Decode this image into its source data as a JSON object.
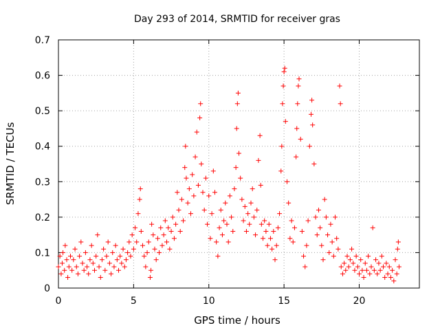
{
  "chart_data": {
    "type": "scatter",
    "title": "Day 293 of 2014, SRMTID for receiver gras",
    "xlabel": "GPS time / hours",
    "ylabel": "SRMTID / TECUs",
    "xlim": [
      0,
      24
    ],
    "ylim": [
      0,
      0.7
    ],
    "xticks": [
      0,
      5,
      10,
      15,
      20
    ],
    "xtick_labels": [
      "0",
      "5",
      "10",
      "15",
      "20"
    ],
    "yticks": [
      0,
      0.1,
      0.2,
      0.3,
      0.4,
      0.5,
      0.6,
      0.7
    ],
    "ytick_labels": [
      "0",
      "0.1",
      "0.2",
      "0.3",
      "0.4",
      "0.5",
      "0.6",
      "0.7"
    ],
    "grid": true,
    "marker": "+",
    "marker_color": "#ff0000",
    "series": [
      {
        "name": "gras",
        "points": [
          [
            0.0,
            0.06
          ],
          [
            0.1,
            0.09
          ],
          [
            0.18,
            0.04
          ],
          [
            0.25,
            0.07
          ],
          [
            0.3,
            0.1
          ],
          [
            0.4,
            0.05
          ],
          [
            0.45,
            0.12
          ],
          [
            0.55,
            0.08
          ],
          [
            0.62,
            0.03
          ],
          [
            0.7,
            0.06
          ],
          [
            0.8,
            0.09
          ],
          [
            0.9,
            0.05
          ],
          [
            1.0,
            0.08
          ],
          [
            1.1,
            0.11
          ],
          [
            1.2,
            0.06
          ],
          [
            1.3,
            0.04
          ],
          [
            1.4,
            0.09
          ],
          [
            1.5,
            0.13
          ],
          [
            1.6,
            0.07
          ],
          [
            1.7,
            0.05
          ],
          [
            1.8,
            0.1
          ],
          [
            1.9,
            0.06
          ],
          [
            2.0,
            0.04
          ],
          [
            2.1,
            0.08
          ],
          [
            2.2,
            0.12
          ],
          [
            2.3,
            0.07
          ],
          [
            2.4,
            0.05
          ],
          [
            2.5,
            0.09
          ],
          [
            2.6,
            0.15
          ],
          [
            2.7,
            0.06
          ],
          [
            2.8,
            0.03
          ],
          [
            2.9,
            0.08
          ],
          [
            3.0,
            0.11
          ],
          [
            3.1,
            0.05
          ],
          [
            3.2,
            0.09
          ],
          [
            3.3,
            0.13
          ],
          [
            3.4,
            0.07
          ],
          [
            3.5,
            0.04
          ],
          [
            3.6,
            0.1
          ],
          [
            3.7,
            0.06
          ],
          [
            3.8,
            0.12
          ],
          [
            3.9,
            0.08
          ],
          [
            4.0,
            0.05
          ],
          [
            4.1,
            0.09
          ],
          [
            4.2,
            0.07
          ],
          [
            4.3,
            0.11
          ],
          [
            4.4,
            0.06
          ],
          [
            4.5,
            0.08
          ],
          [
            4.6,
            0.1
          ],
          [
            4.7,
            0.13
          ],
          [
            4.8,
            0.09
          ],
          [
            4.9,
            0.15
          ],
          [
            5.0,
            0.11
          ],
          [
            5.1,
            0.17
          ],
          [
            5.2,
            0.13
          ],
          [
            5.3,
            0.21
          ],
          [
            5.4,
            0.25
          ],
          [
            5.45,
            0.28
          ],
          [
            5.5,
            0.16
          ],
          [
            5.6,
            0.12
          ],
          [
            5.7,
            0.09
          ],
          [
            5.8,
            0.06
          ],
          [
            5.9,
            0.1
          ],
          [
            6.0,
            0.13
          ],
          [
            6.1,
            0.03
          ],
          [
            6.15,
            0.05
          ],
          [
            6.2,
            0.18
          ],
          [
            6.3,
            0.15
          ],
          [
            6.4,
            0.11
          ],
          [
            6.5,
            0.08
          ],
          [
            6.6,
            0.14
          ],
          [
            6.7,
            0.1
          ],
          [
            6.8,
            0.17
          ],
          [
            6.9,
            0.12
          ],
          [
            7.0,
            0.15
          ],
          [
            7.1,
            0.19
          ],
          [
            7.2,
            0.13
          ],
          [
            7.3,
            0.17
          ],
          [
            7.4,
            0.11
          ],
          [
            7.5,
            0.16
          ],
          [
            7.6,
            0.2
          ],
          [
            7.7,
            0.14
          ],
          [
            7.8,
            0.18
          ],
          [
            7.9,
            0.27
          ],
          [
            8.0,
            0.22
          ],
          [
            8.1,
            0.16
          ],
          [
            8.2,
            0.25
          ],
          [
            8.3,
            0.19
          ],
          [
            8.4,
            0.34
          ],
          [
            8.45,
            0.4
          ],
          [
            8.5,
            0.31
          ],
          [
            8.6,
            0.24
          ],
          [
            8.7,
            0.28
          ],
          [
            8.8,
            0.21
          ],
          [
            8.9,
            0.32
          ],
          [
            9.0,
            0.26
          ],
          [
            9.1,
            0.37
          ],
          [
            9.2,
            0.44
          ],
          [
            9.3,
            0.29
          ],
          [
            9.4,
            0.48
          ],
          [
            9.45,
            0.52
          ],
          [
            9.5,
            0.35
          ],
          [
            9.6,
            0.27
          ],
          [
            9.7,
            0.22
          ],
          [
            9.8,
            0.31
          ],
          [
            9.9,
            0.18
          ],
          [
            10.0,
            0.26
          ],
          [
            10.1,
            0.14
          ],
          [
            10.2,
            0.21
          ],
          [
            10.3,
            0.33
          ],
          [
            10.4,
            0.27
          ],
          [
            10.5,
            0.13
          ],
          [
            10.6,
            0.09
          ],
          [
            10.7,
            0.17
          ],
          [
            10.8,
            0.22
          ],
          [
            10.9,
            0.15
          ],
          [
            11.0,
            0.19
          ],
          [
            11.1,
            0.24
          ],
          [
            11.2,
            0.18
          ],
          [
            11.3,
            0.13
          ],
          [
            11.4,
            0.26
          ],
          [
            11.5,
            0.2
          ],
          [
            11.6,
            0.16
          ],
          [
            11.7,
            0.28
          ],
          [
            11.8,
            0.34
          ],
          [
            11.85,
            0.45
          ],
          [
            11.9,
            0.52
          ],
          [
            11.95,
            0.55
          ],
          [
            12.0,
            0.38
          ],
          [
            12.1,
            0.31
          ],
          [
            12.2,
            0.25
          ],
          [
            12.3,
            0.19
          ],
          [
            12.4,
            0.23
          ],
          [
            12.5,
            0.16
          ],
          [
            12.6,
            0.21
          ],
          [
            12.7,
            0.18
          ],
          [
            12.8,
            0.24
          ],
          [
            12.9,
            0.28
          ],
          [
            13.0,
            0.2
          ],
          [
            13.1,
            0.15
          ],
          [
            13.2,
            0.22
          ],
          [
            13.3,
            0.36
          ],
          [
            13.4,
            0.43
          ],
          [
            13.45,
            0.29
          ],
          [
            13.5,
            0.18
          ],
          [
            13.6,
            0.14
          ],
          [
            13.7,
            0.19
          ],
          [
            13.8,
            0.16
          ],
          [
            13.9,
            0.12
          ],
          [
            14.0,
            0.18
          ],
          [
            14.1,
            0.14
          ],
          [
            14.2,
            0.11
          ],
          [
            14.3,
            0.16
          ],
          [
            14.4,
            0.08
          ],
          [
            14.5,
            0.12
          ],
          [
            14.6,
            0.17
          ],
          [
            14.7,
            0.21
          ],
          [
            14.8,
            0.33
          ],
          [
            14.85,
            0.4
          ],
          [
            14.9,
            0.52
          ],
          [
            14.95,
            0.57
          ],
          [
            15.0,
            0.61
          ],
          [
            15.05,
            0.62
          ],
          [
            15.1,
            0.47
          ],
          [
            15.2,
            0.3
          ],
          [
            15.3,
            0.24
          ],
          [
            15.4,
            0.14
          ],
          [
            15.5,
            0.19
          ],
          [
            15.6,
            0.13
          ],
          [
            15.7,
            0.17
          ],
          [
            15.8,
            0.37
          ],
          [
            15.85,
            0.45
          ],
          [
            15.9,
            0.52
          ],
          [
            15.95,
            0.57
          ],
          [
            16.0,
            0.59
          ],
          [
            16.1,
            0.42
          ],
          [
            16.2,
            0.16
          ],
          [
            16.3,
            0.09
          ],
          [
            16.4,
            0.06
          ],
          [
            16.5,
            0.12
          ],
          [
            16.6,
            0.19
          ],
          [
            16.7,
            0.4
          ],
          [
            16.8,
            0.49
          ],
          [
            16.85,
            0.53
          ],
          [
            16.9,
            0.46
          ],
          [
            17.0,
            0.35
          ],
          [
            17.1,
            0.2
          ],
          [
            17.2,
            0.15
          ],
          [
            17.3,
            0.22
          ],
          [
            17.4,
            0.17
          ],
          [
            17.5,
            0.12
          ],
          [
            17.6,
            0.08
          ],
          [
            17.7,
            0.25
          ],
          [
            17.8,
            0.2
          ],
          [
            17.9,
            0.15
          ],
          [
            18.0,
            0.1
          ],
          [
            18.1,
            0.18
          ],
          [
            18.2,
            0.13
          ],
          [
            18.3,
            0.09
          ],
          [
            18.4,
            0.2
          ],
          [
            18.5,
            0.14
          ],
          [
            18.6,
            0.11
          ],
          [
            18.7,
            0.57
          ],
          [
            18.75,
            0.52
          ],
          [
            18.8,
            0.06
          ],
          [
            18.9,
            0.04
          ],
          [
            19.0,
            0.07
          ],
          [
            19.1,
            0.05
          ],
          [
            19.2,
            0.09
          ],
          [
            19.3,
            0.06
          ],
          [
            19.4,
            0.08
          ],
          [
            19.5,
            0.11
          ],
          [
            19.6,
            0.07
          ],
          [
            19.7,
            0.05
          ],
          [
            19.8,
            0.09
          ],
          [
            19.9,
            0.06
          ],
          [
            20.0,
            0.04
          ],
          [
            20.1,
            0.08
          ],
          [
            20.2,
            0.05
          ],
          [
            20.3,
            0.03
          ],
          [
            20.4,
            0.07
          ],
          [
            20.5,
            0.05
          ],
          [
            20.6,
            0.09
          ],
          [
            20.7,
            0.04
          ],
          [
            20.8,
            0.06
          ],
          [
            20.9,
            0.17
          ],
          [
            21.0,
            0.05
          ],
          [
            21.1,
            0.08
          ],
          [
            21.2,
            0.04
          ],
          [
            21.3,
            0.07
          ],
          [
            21.4,
            0.05
          ],
          [
            21.5,
            0.09
          ],
          [
            21.6,
            0.06
          ],
          [
            21.7,
            0.03
          ],
          [
            21.8,
            0.07
          ],
          [
            21.9,
            0.04
          ],
          [
            22.0,
            0.06
          ],
          [
            22.1,
            0.03
          ],
          [
            22.2,
            0.05
          ],
          [
            22.3,
            0.02
          ],
          [
            22.4,
            0.08
          ],
          [
            22.5,
            0.04
          ],
          [
            22.55,
            0.11
          ],
          [
            22.6,
            0.13
          ],
          [
            22.65,
            0.06
          ]
        ]
      }
    ]
  }
}
